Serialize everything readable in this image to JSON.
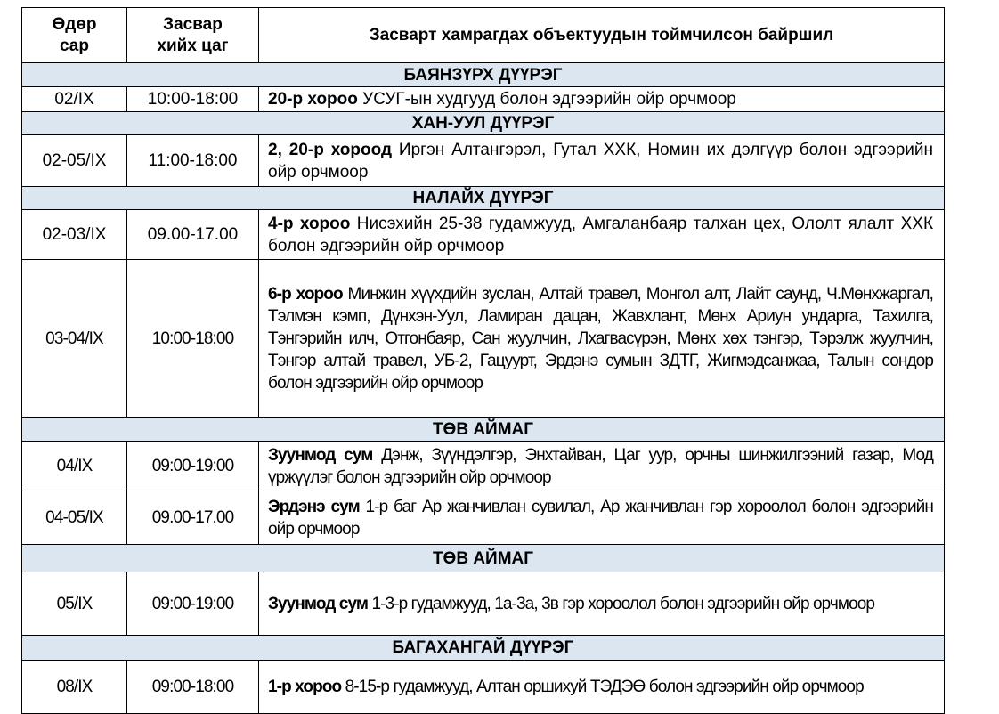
{
  "table": {
    "headers": [
      "Өдөр сар",
      "Засвар хийх цаг",
      "Засварт хамрагдах объектуудын тоймчилсон байршил"
    ],
    "rows": [
      {
        "section": "БАЯНЗҮРХ ДҮҮРЭГ"
      },
      {
        "date": "02/IX",
        "time": "10:00-18:00",
        "bold": "20-р хороо",
        "text": " УСУГ-ын худгууд болон эдгээрийн ойр орчмоор"
      },
      {
        "section": "ХАН-УУЛ ДҮҮРЭГ"
      },
      {
        "date": "02-05/IX",
        "time": "11:00-18:00",
        "bold": "2, 20-р хороод",
        "text": " Иргэн Алтангэрэл, Гутал ХХК, Номин их дэлгүүр болон эдгээрийн ойр орчмоор"
      },
      {
        "section": "НАЛАЙХ ДҮҮРЭГ"
      },
      {
        "date": "02-03/IX",
        "time": "09.00-17.00",
        "bold": "4-р хороо",
        "text": " Нисэхийн 25-38 гудамжууд, Амгаланбаяр талхан цех, Ололт ялалт ХХК болон эдгээрийн ойр орчмоор"
      },
      {
        "date": "03-04/IX",
        "time": "10:00-18:00",
        "bold": "6-р хороо",
        "text": " Минжин хүүхдийн зуслан, Алтай травел, Монгол алт, Лайт саунд, Ч.Мөнхжаргал, Тэлмэн кэмп, Дүнхэн-Уул, Ламиран дацан, Жавхлант, Мөнх Ариун ундарга, Тахилга, Тэнгэрийн илч, Отгонбаяр, Сан жуулчин, Лхагвасүрэн, Мөнх хөх тэнгэр, Тэрэлж жуулчин, Тэнгэр алтай травел, УБ-2, Гацуурт, Эрдэнэ сумын ЗДТГ, Жигмэдсанжаа, Талын сондор болон эдгээрийн ойр орчмоор"
      },
      {
        "section": "ТӨВ АЙМАГ"
      },
      {
        "date": "04/IX",
        "time": "09:00-19:00",
        "bold": "Зуунмод сум",
        "text": " Дэнж, Зүүндэлгэр, Энхтайван, Цаг уур, орчны шинжилгээний газар, Мод үржүүлэг болон эдгээрийн ойр орчмоор"
      },
      {
        "date": "04-05/IX",
        "time": "09.00-17.00",
        "bold": "Эрдэнэ сум",
        "text": " 1-р баг Ар жанчивлан сувилал, Ар жанчивлан гэр хороолол болон эдгээрийн ойр орчмоор"
      },
      {
        "section": "ТӨВ АЙМАГ"
      },
      {
        "date": "05/IX",
        "time": "09:00-19:00",
        "bold": "Зуунмод сум",
        "text": " 1-3-р гудамжууд, 1а-3а, 3в гэр хороолол болон эдгээрийн ойр орчмоор"
      },
      {
        "section": "БАГАХАНГАЙ ДҮҮРЭГ"
      },
      {
        "date": "08/IX",
        "time": "09:00-18:00",
        "bold": "1-р хороо",
        "text": " 8-15-р гудамжууд, Алтан оршихуй ТЭДЭӨ болон эдгээрийн ойр орчмоор"
      }
    ]
  },
  "colors": {
    "section_bg": "#dce6f1",
    "border": "#000000"
  }
}
